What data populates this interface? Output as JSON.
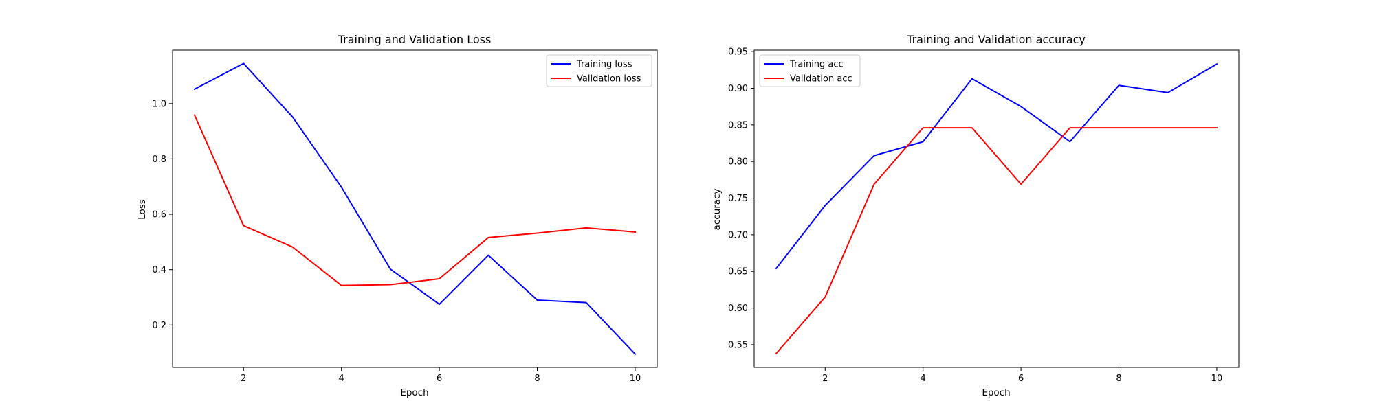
{
  "chart_data": [
    {
      "type": "line",
      "title": "Training and Validation Loss",
      "xlabel": "Epoch",
      "ylabel": "Loss",
      "x": [
        1,
        2,
        3,
        4,
        5,
        6,
        7,
        8,
        9,
        10
      ],
      "xlim": [
        0.55,
        10.45
      ],
      "ylim": [
        0.047,
        1.193
      ],
      "xticks": [
        2,
        4,
        6,
        8,
        10
      ],
      "yticks": [
        0.2,
        0.4,
        0.6,
        0.8,
        1.0
      ],
      "xtick_labels": [
        "2",
        "4",
        "6",
        "8",
        "10"
      ],
      "ytick_labels": [
        "0.2",
        "0.4",
        "0.6",
        "0.8",
        "1.0"
      ],
      "grid": false,
      "legend": "top-right",
      "series": [
        {
          "name": "Training loss",
          "color": "#0000ff",
          "values": [
            1.052,
            1.145,
            0.952,
            0.698,
            0.402,
            0.275,
            0.452,
            0.29,
            0.281,
            0.095
          ]
        },
        {
          "name": "Validation loss",
          "color": "#ff0000",
          "values": [
            0.958,
            0.559,
            0.482,
            0.343,
            0.346,
            0.367,
            0.516,
            0.532,
            0.551,
            0.536
          ]
        }
      ]
    },
    {
      "type": "line",
      "title": "Training and Validation accuracy",
      "xlabel": "Epoch",
      "ylabel": "accuracy",
      "x": [
        1,
        2,
        3,
        4,
        5,
        6,
        7,
        8,
        9,
        10
      ],
      "xlim": [
        0.55,
        10.45
      ],
      "ylim": [
        0.519,
        0.952
      ],
      "xticks": [
        2,
        4,
        6,
        8,
        10
      ],
      "yticks": [
        0.55,
        0.6,
        0.65,
        0.7,
        0.75,
        0.8,
        0.85,
        0.9,
        0.95
      ],
      "xtick_labels": [
        "2",
        "4",
        "6",
        "8",
        "10"
      ],
      "ytick_labels": [
        "0.55",
        "0.60",
        "0.65",
        "0.70",
        "0.75",
        "0.80",
        "0.85",
        "0.90",
        "0.95"
      ],
      "grid": false,
      "legend": "top-left",
      "series": [
        {
          "name": "Training acc",
          "color": "#0000ff",
          "values": [
            0.654,
            0.74,
            0.808,
            0.827,
            0.913,
            0.875,
            0.827,
            0.904,
            0.894,
            0.933
          ]
        },
        {
          "name": "Validation acc",
          "color": "#ff0000",
          "values": [
            0.538,
            0.615,
            0.769,
            0.846,
            0.846,
            0.769,
            0.846,
            0.846,
            0.846,
            0.846
          ]
        }
      ]
    }
  ]
}
